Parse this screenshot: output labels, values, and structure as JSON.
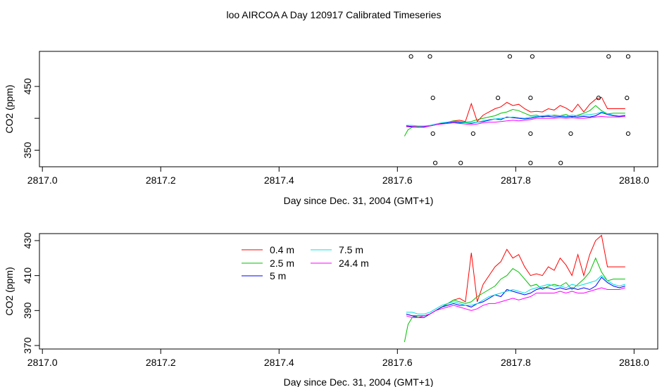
{
  "title": "loo AIRCOA A  Day 120917  Calibrated Timeseries",
  "chart_data": [
    {
      "type": "line",
      "xlabel": "Day since Dec. 31, 2004 (GMT+1)",
      "ylabel": "CO2 (ppm)",
      "xlim": [
        2816.995,
        2818.04
      ],
      "ylim": [
        324,
        505
      ],
      "xticks": [
        2817.0,
        2817.2,
        2817.4,
        2817.6,
        2817.8,
        2818.0
      ],
      "xtick_labels": [
        "2817.0",
        "2817.2",
        "2817.4",
        "2817.6",
        "2817.8",
        "2818.0"
      ],
      "yticks": [
        350,
        400,
        450
      ],
      "ytick_labels": [
        "350",
        "",
        "450"
      ],
      "series": [
        {
          "color": "#ff0000",
          "x": [
            2817.615,
            2817.625,
            2817.635,
            2817.645,
            2817.655,
            2817.665,
            2817.675,
            2817.685,
            2817.695,
            2817.705,
            2817.715,
            2817.725,
            2817.735,
            2817.745,
            2817.755,
            2817.765,
            2817.775,
            2817.785,
            2817.795,
            2817.805,
            2817.815,
            2817.825,
            2817.835,
            2817.845,
            2817.855,
            2817.865,
            2817.875,
            2817.885,
            2817.895,
            2817.905,
            2817.915,
            2817.925,
            2817.935,
            2817.945,
            2817.955,
            2817.965,
            2817.975,
            2817.985
          ],
          "y": [
            388,
            387,
            387,
            387,
            388,
            390,
            392,
            394,
            396,
            397,
            395,
            423,
            395,
            405,
            410,
            415,
            418,
            425,
            420,
            422,
            415,
            410,
            411,
            410,
            415,
            413,
            420,
            416,
            410,
            422,
            410,
            422,
            430,
            433,
            415,
            415,
            415,
            415
          ]
        },
        {
          "color": "#00c000",
          "x": [
            2817.612,
            2817.618,
            2817.625,
            2817.635,
            2817.645,
            2817.655,
            2817.665,
            2817.675,
            2817.685,
            2817.695,
            2817.705,
            2817.715,
            2817.725,
            2817.735,
            2817.745,
            2817.755,
            2817.765,
            2817.775,
            2817.785,
            2817.795,
            2817.805,
            2817.815,
            2817.825,
            2817.835,
            2817.845,
            2817.855,
            2817.865,
            2817.875,
            2817.885,
            2817.895,
            2817.905,
            2817.915,
            2817.925,
            2817.935,
            2817.945,
            2817.955,
            2817.965,
            2817.975,
            2817.985
          ],
          "y": [
            372,
            382,
            386,
            387,
            387,
            388,
            390,
            392,
            394,
            396,
            395,
            394,
            395,
            398,
            400,
            402,
            404,
            408,
            410,
            414,
            412,
            408,
            404,
            405,
            402,
            404,
            405,
            404,
            406,
            402,
            405,
            408,
            412,
            420,
            412,
            407,
            408,
            408,
            408
          ]
        },
        {
          "color": "#0000ff",
          "x": [
            2817.615,
            2817.625,
            2817.635,
            2817.645,
            2817.655,
            2817.665,
            2817.675,
            2817.685,
            2817.695,
            2817.705,
            2817.715,
            2817.725,
            2817.735,
            2817.745,
            2817.755,
            2817.765,
            2817.775,
            2817.785,
            2817.795,
            2817.805,
            2817.815,
            2817.825,
            2817.835,
            2817.845,
            2817.855,
            2817.865,
            2817.875,
            2817.885,
            2817.895,
            2817.905,
            2817.915,
            2817.925,
            2817.935,
            2817.945,
            2817.955,
            2817.965,
            2817.975,
            2817.985
          ],
          "y": [
            388,
            387,
            386,
            386,
            388,
            390,
            392,
            393,
            394,
            393,
            393,
            392,
            394,
            395,
            397,
            399,
            398,
            402,
            401,
            400,
            399,
            400,
            402,
            403,
            403,
            402,
            403,
            402,
            403,
            402,
            403,
            402,
            404,
            409,
            406,
            404,
            403,
            404
          ]
        },
        {
          "color": "#00e0e0",
          "x": [
            2817.615,
            2817.625,
            2817.635,
            2817.645,
            2817.655,
            2817.665,
            2817.675,
            2817.685,
            2817.695,
            2817.705,
            2817.715,
            2817.725,
            2817.735,
            2817.745,
            2817.755,
            2817.765,
            2817.775,
            2817.785,
            2817.795,
            2817.805,
            2817.815,
            2817.825,
            2817.835,
            2817.845,
            2817.855,
            2817.865,
            2817.875,
            2817.885,
            2817.895,
            2817.905,
            2817.915,
            2817.925,
            2817.935,
            2817.945,
            2817.955,
            2817.965,
            2817.975,
            2817.985
          ],
          "y": [
            389,
            389,
            388,
            388,
            389,
            391,
            393,
            394,
            395,
            394,
            393,
            393,
            394,
            396,
            398,
            399,
            400,
            401,
            402,
            401,
            400,
            402,
            403,
            404,
            405,
            404,
            404,
            403,
            405,
            404,
            405,
            406,
            407,
            410,
            407,
            405,
            404,
            405
          ]
        },
        {
          "color": "#ff00ff",
          "x": [
            2817.615,
            2817.625,
            2817.635,
            2817.645,
            2817.655,
            2817.665,
            2817.675,
            2817.685,
            2817.695,
            2817.705,
            2817.715,
            2817.725,
            2817.735,
            2817.745,
            2817.755,
            2817.765,
            2817.775,
            2817.785,
            2817.795,
            2817.805,
            2817.815,
            2817.825,
            2817.835,
            2817.845,
            2817.855,
            2817.865,
            2817.875,
            2817.885,
            2817.895,
            2817.905,
            2817.915,
            2817.925,
            2817.935,
            2817.945,
            2817.955,
            2817.965,
            2817.975,
            2817.985
          ],
          "y": [
            387,
            386,
            386,
            387,
            388,
            390,
            391,
            392,
            393,
            392,
            391,
            390,
            391,
            393,
            394,
            394,
            395,
            396,
            397,
            396,
            397,
            398,
            400,
            400,
            400,
            400,
            401,
            400,
            401,
            400,
            400,
            401,
            402,
            403,
            402,
            402,
            402,
            403
          ]
        }
      ],
      "points": {
        "x": [
          2817.623,
          2817.655,
          2817.828,
          2817.957,
          2817.664,
          2817.707,
          2817.825,
          2817.876,
          2817.66,
          2817.728,
          2817.825,
          2817.893,
          2817.99,
          2817.66,
          2817.77,
          2817.825,
          2817.94,
          2817.988,
          2817.79,
          2817.99
        ],
        "y": [
          497,
          497,
          497,
          497,
          330,
          330,
          330,
          330,
          376,
          376,
          376,
          376,
          376,
          432,
          432,
          432,
          432,
          432,
          497,
          497
        ]
      }
    },
    {
      "type": "line",
      "xlabel": "Day since Dec. 31, 2004 (GMT+1)",
      "ylabel": "CO2 (ppm)",
      "xlim": [
        2816.995,
        2818.04
      ],
      "ylim": [
        368,
        434
      ],
      "xticks": [
        2817.0,
        2817.2,
        2817.4,
        2817.6,
        2817.8,
        2818.0
      ],
      "xtick_labels": [
        "2817.0",
        "2817.2",
        "2817.4",
        "2817.6",
        "2817.8",
        "2818.0"
      ],
      "yticks": [
        370,
        390,
        410,
        430
      ],
      "ytick_labels": [
        "370",
        "390",
        "410",
        "430"
      ],
      "legend": {
        "placement": "top-center",
        "entries": [
          {
            "label": "0.4 m",
            "color": "#ff0000"
          },
          {
            "label": "2.5 m",
            "color": "#00c000"
          },
          {
            "label": "5 m",
            "color": "#0000ff"
          },
          {
            "label": "7.5 m",
            "color": "#00e0e0"
          },
          {
            "label": "24.4 m",
            "color": "#ff00ff"
          }
        ]
      },
      "series_ref": 0
    }
  ]
}
